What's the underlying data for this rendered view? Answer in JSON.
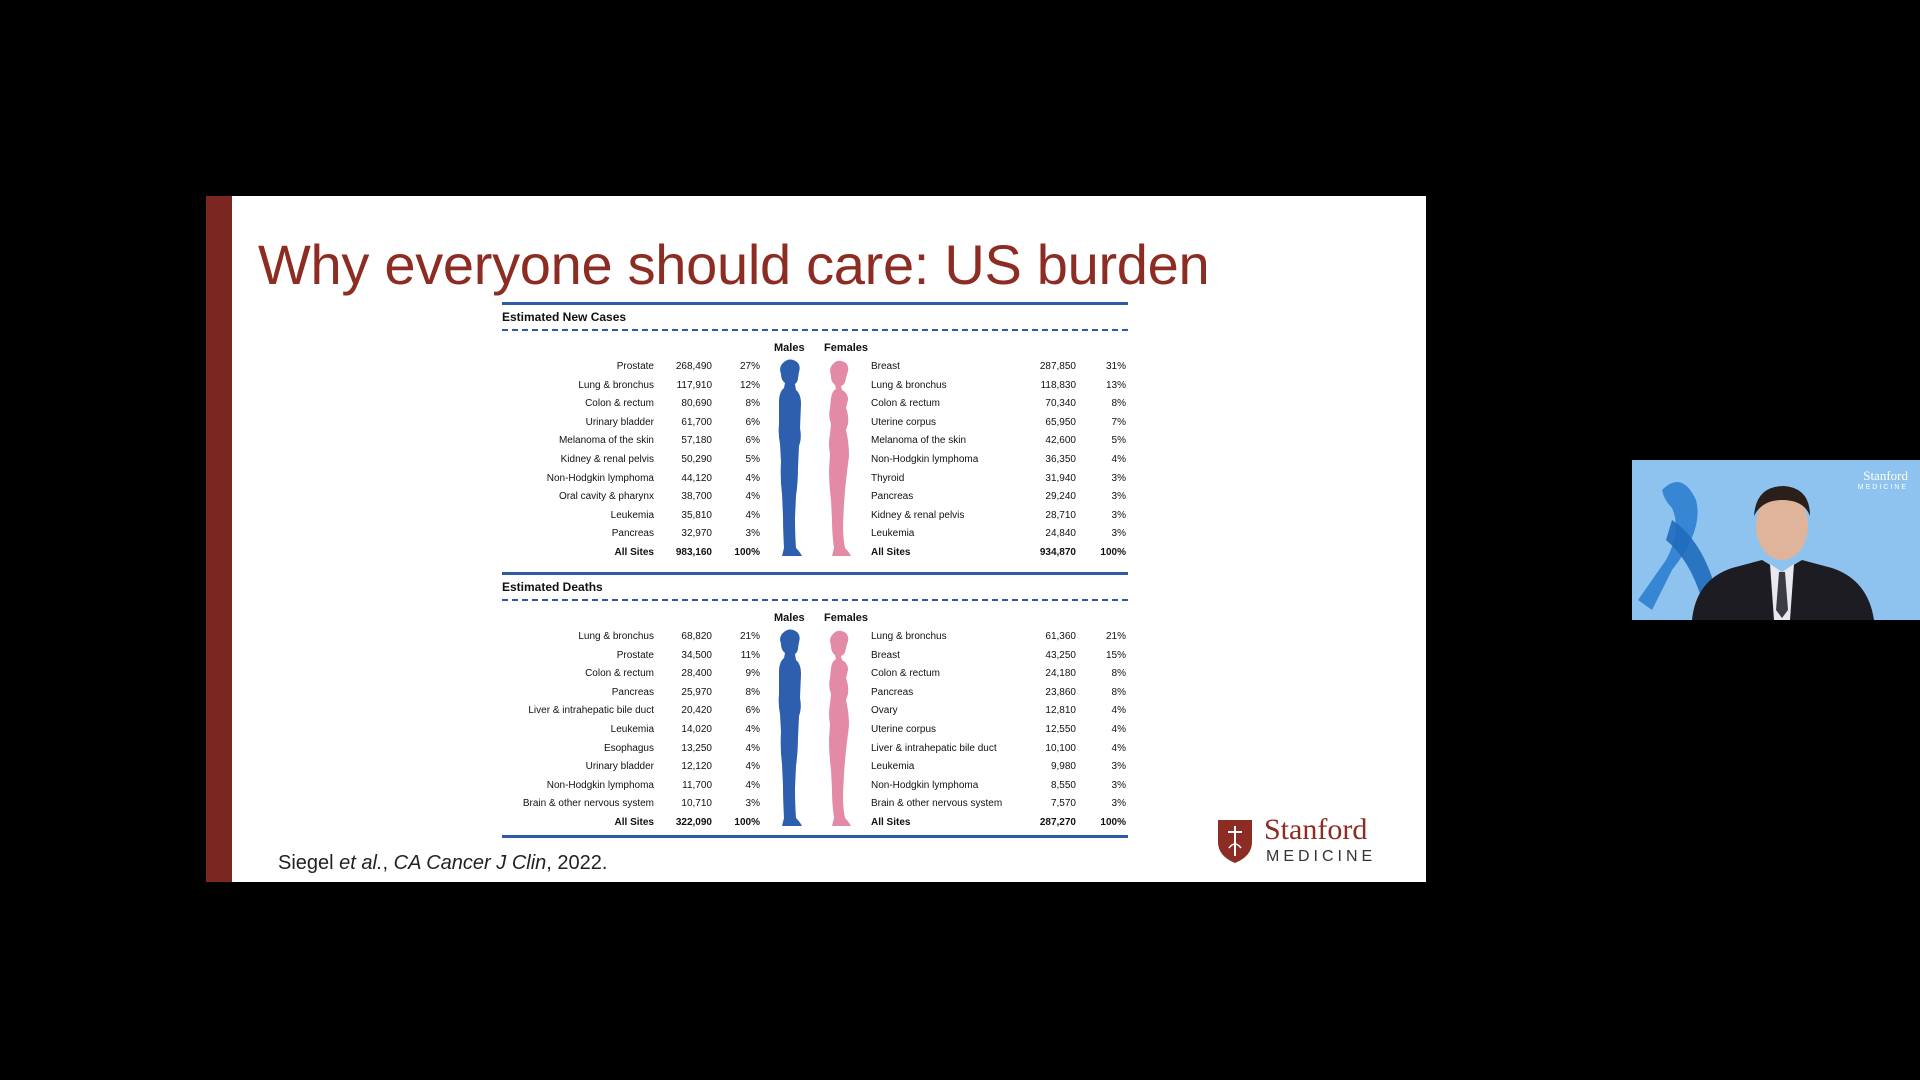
{
  "slide": {
    "title": "Why everyone should care: US burden",
    "citation": {
      "author": "Siegel ",
      "etal": "et al.",
      "sep": ", ",
      "journal": "CA Cancer J Clin",
      "year": ", 2022."
    }
  },
  "new_cases": {
    "title": "Estimated New Cases",
    "males_label": "Males",
    "females_label": "Females",
    "rows": [
      {
        "m_site": "Prostate",
        "m_num": "268,490",
        "m_pct": "27%",
        "f_site": "Breast",
        "f_num": "287,850",
        "f_pct": "31%"
      },
      {
        "m_site": "Lung & bronchus",
        "m_num": "117,910",
        "m_pct": "12%",
        "f_site": "Lung & bronchus",
        "f_num": "118,830",
        "f_pct": "13%"
      },
      {
        "m_site": "Colon & rectum",
        "m_num": "80,690",
        "m_pct": "8%",
        "f_site": "Colon & rectum",
        "f_num": "70,340",
        "f_pct": "8%"
      },
      {
        "m_site": "Urinary bladder",
        "m_num": "61,700",
        "m_pct": "6%",
        "f_site": "Uterine corpus",
        "f_num": "65,950",
        "f_pct": "7%"
      },
      {
        "m_site": "Melanoma of the skin",
        "m_num": "57,180",
        "m_pct": "6%",
        "f_site": "Melanoma of the skin",
        "f_num": "42,600",
        "f_pct": "5%"
      },
      {
        "m_site": "Kidney & renal pelvis",
        "m_num": "50,290",
        "m_pct": "5%",
        "f_site": "Non-Hodgkin lymphoma",
        "f_num": "36,350",
        "f_pct": "4%"
      },
      {
        "m_site": "Non-Hodgkin lymphoma",
        "m_num": "44,120",
        "m_pct": "4%",
        "f_site": "Thyroid",
        "f_num": "31,940",
        "f_pct": "3%"
      },
      {
        "m_site": "Oral cavity & pharynx",
        "m_num": "38,700",
        "m_pct": "4%",
        "f_site": "Pancreas",
        "f_num": "29,240",
        "f_pct": "3%"
      },
      {
        "m_site": "Leukemia",
        "m_num": "35,810",
        "m_pct": "4%",
        "f_site": "Kidney & renal pelvis",
        "f_num": "28,710",
        "f_pct": "3%"
      },
      {
        "m_site": "Pancreas",
        "m_num": "32,970",
        "m_pct": "3%",
        "f_site": "Leukemia",
        "f_num": "24,840",
        "f_pct": "3%"
      },
      {
        "m_site": "All Sites",
        "m_num": "983,160",
        "m_pct": "100%",
        "f_site": "All Sites",
        "f_num": "934,870",
        "f_pct": "100%"
      }
    ]
  },
  "deaths": {
    "title": "Estimated Deaths",
    "males_label": "Males",
    "females_label": "Females",
    "rows": [
      {
        "m_site": "Lung & bronchus",
        "m_num": "68,820",
        "m_pct": "21%",
        "f_site": "Lung & bronchus",
        "f_num": "61,360",
        "f_pct": "21%"
      },
      {
        "m_site": "Prostate",
        "m_num": "34,500",
        "m_pct": "11%",
        "f_site": "Breast",
        "f_num": "43,250",
        "f_pct": "15%"
      },
      {
        "m_site": "Colon & rectum",
        "m_num": "28,400",
        "m_pct": "9%",
        "f_site": "Colon & rectum",
        "f_num": "24,180",
        "f_pct": "8%"
      },
      {
        "m_site": "Pancreas",
        "m_num": "25,970",
        "m_pct": "8%",
        "f_site": "Pancreas",
        "f_num": "23,860",
        "f_pct": "8%"
      },
      {
        "m_site": "Liver & intrahepatic bile duct",
        "m_num": "20,420",
        "m_pct": "6%",
        "f_site": "Ovary",
        "f_num": "12,810",
        "f_pct": "4%"
      },
      {
        "m_site": "Leukemia",
        "m_num": "14,020",
        "m_pct": "4%",
        "f_site": "Uterine corpus",
        "f_num": "12,550",
        "f_pct": "4%"
      },
      {
        "m_site": "Esophagus",
        "m_num": "13,250",
        "m_pct": "4%",
        "f_site": "Liver & intrahepatic bile duct",
        "f_num": "10,100",
        "f_pct": "4%"
      },
      {
        "m_site": "Urinary bladder",
        "m_num": "12,120",
        "m_pct": "4%",
        "f_site": "Leukemia",
        "f_num": "9,980",
        "f_pct": "3%"
      },
      {
        "m_site": "Non-Hodgkin lymphoma",
        "m_num": "11,700",
        "m_pct": "4%",
        "f_site": "Non-Hodgkin lymphoma",
        "f_num": "8,550",
        "f_pct": "3%"
      },
      {
        "m_site": "Brain & other nervous system",
        "m_num": "10,710",
        "m_pct": "3%",
        "f_site": "Brain & other nervous system",
        "f_num": "7,570",
        "f_pct": "3%"
      },
      {
        "m_site": "All Sites",
        "m_num": "322,090",
        "m_pct": "100%",
        "f_site": "All Sites",
        "f_num": "287,270",
        "f_pct": "100%"
      }
    ]
  },
  "logo": {
    "word": "Stanford",
    "sub": "MEDICINE"
  },
  "webcam": {
    "logo_word": "Stanford",
    "logo_sub": "MEDICINE"
  },
  "colors": {
    "slide_accent": "#7b2620",
    "title": "#8c2c22",
    "rule_blue": "#2f5aa6",
    "male": "#2e5fae",
    "female": "#e38aa6",
    "webcam_bg": "#8ec3ef"
  }
}
